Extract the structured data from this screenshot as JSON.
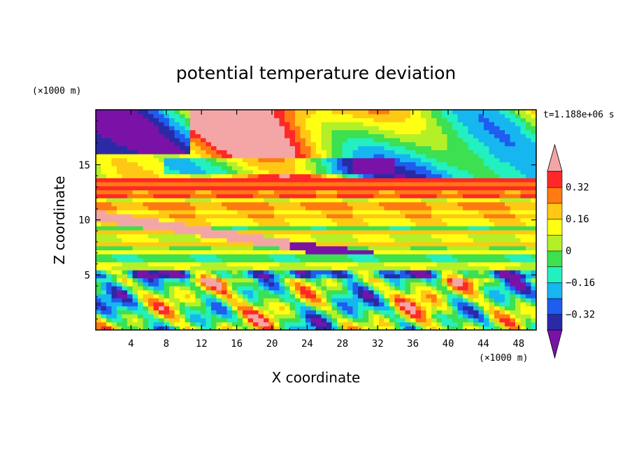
{
  "chart_data": {
    "type": "heatmap",
    "title": "potential temperature deviation",
    "xlabel": "X coordinate",
    "ylabel": "Z coordinate",
    "x_unit": "(×1000 m)",
    "y_unit": "(×1000 m)",
    "time_label": "t=1.188e+06 s",
    "xlim": [
      0,
      50
    ],
    "ylim": [
      0,
      20
    ],
    "x_ticks": [
      4,
      8,
      12,
      16,
      20,
      24,
      28,
      32,
      36,
      40,
      44,
      48
    ],
    "y_ticks": [
      5,
      10,
      15
    ],
    "colorbar": {
      "levels": [
        -0.4,
        -0.32,
        -0.24,
        -0.16,
        -0.08,
        0,
        0.08,
        0.16,
        0.24,
        0.32,
        0.4
      ],
      "labels": [
        "0.32",
        "0.16",
        "0",
        "−0.16",
        "−0.32"
      ],
      "label_values": [
        0.32,
        0.16,
        0,
        -0.16,
        -0.32
      ],
      "colors": [
        "#7a12a8",
        "#2a2aa6",
        "#1f5cf0",
        "#16b6f0",
        "#22f0c0",
        "#3ce050",
        "#b4f028",
        "#ffff14",
        "#ffc814",
        "#ff7a10",
        "#ff2828",
        "#f4a6a6"
      ],
      "extend": "both"
    },
    "layers": [
      {
        "z_range": [
          0,
          5.3
        ],
        "pattern": "strongly perturbed, mixed positive and negative cells"
      },
      {
        "z_range": [
          5.3,
          12
        ],
        "pattern": "horizontal bands near neutral, alternating green, yellow and cyan"
      },
      {
        "z_range": [
          12,
          14
        ],
        "pattern": "alternating positive bands, red and orange"
      },
      {
        "z_range": [
          14,
          20
        ],
        "pattern": "large negative (purple) and positive (pink) regions"
      }
    ]
  }
}
